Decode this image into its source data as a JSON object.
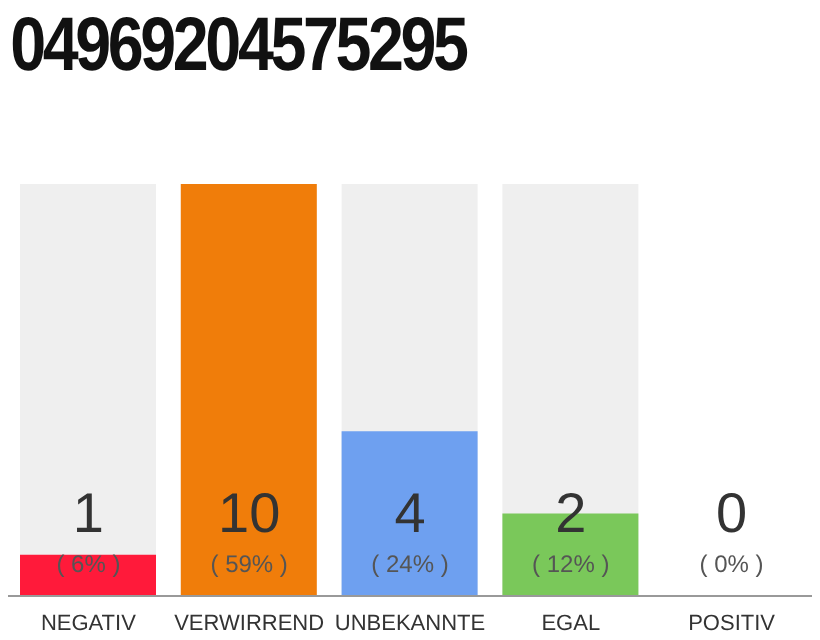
{
  "chart_data": {
    "type": "bar",
    "title": "04969204575295",
    "categories": [
      "NEGATIV",
      "VERWIRREND",
      "UNBEKANNTE",
      "EGAL",
      "POSITIV"
    ],
    "values": [
      1,
      10,
      4,
      2,
      0
    ],
    "colors": [
      "#ff1a3a",
      "#f07d0a",
      "#6ea0f0",
      "#7ac85a",
      "#d9d9d9"
    ],
    "data_labels": true,
    "annotations": [
      "( 6% )",
      "( 59% )",
      "( 24% )",
      "( 12% )",
      "( 0% )"
    ]
  }
}
